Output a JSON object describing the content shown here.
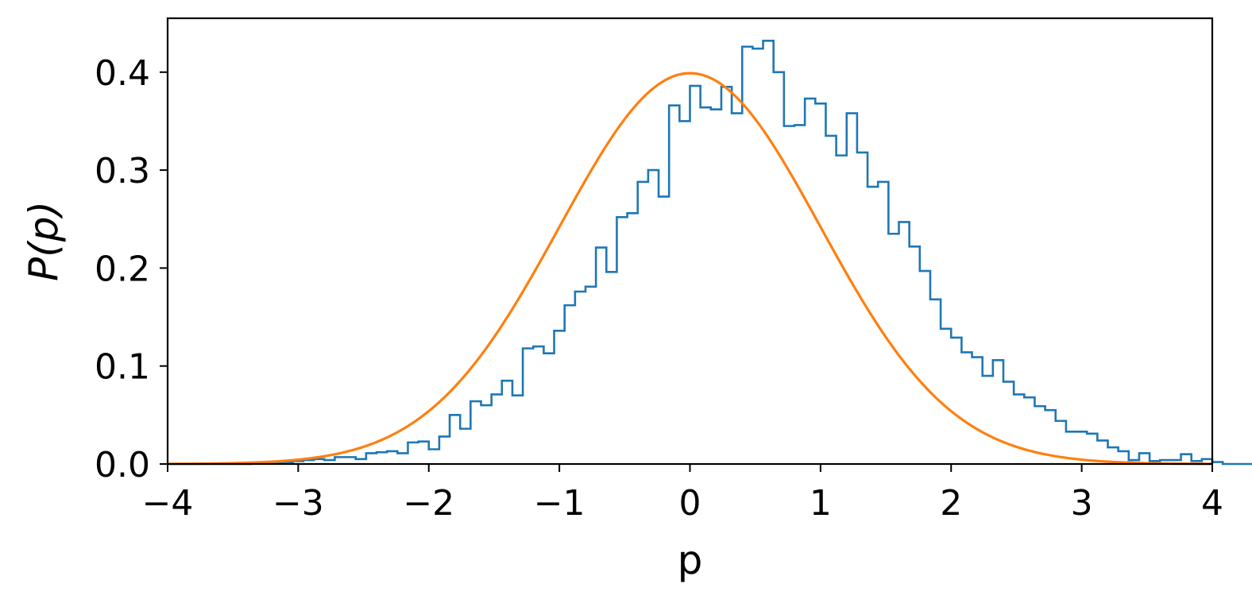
{
  "chart_data": {
    "type": "histogram",
    "xlabel": "p",
    "ylabel_text": "P(p)",
    "xlim": [
      -4,
      4
    ],
    "ylim": [
      0,
      0.455
    ],
    "xticks": [
      -4,
      -3,
      -2,
      -1,
      0,
      1,
      2,
      3,
      4
    ],
    "xtick_labels": [
      "−4",
      "−3",
      "−2",
      "−1",
      "0",
      "1",
      "2",
      "3",
      "4"
    ],
    "yticks": [
      0.0,
      0.1,
      0.2,
      0.3,
      0.4
    ],
    "ytick_labels": [
      "0.0",
      "0.1",
      "0.2",
      "0.3",
      "0.4"
    ],
    "grid": false,
    "series": [
      {
        "kind": "step-histogram",
        "color": "#1f77b4",
        "bin_width": 0.08,
        "bin_edges_start": -4.0,
        "values": [
          0.0,
          0.0,
          0.0,
          0.0,
          0.0,
          0.0,
          0.0,
          0.0,
          0.001,
          0.001,
          0.002,
          0.002,
          0.003,
          0.004,
          0.005,
          0.004,
          0.007,
          0.007,
          0.005,
          0.011,
          0.012,
          0.013,
          0.011,
          0.022,
          0.023,
          0.015,
          0.028,
          0.05,
          0.036,
          0.064,
          0.06,
          0.071,
          0.085,
          0.07,
          0.118,
          0.12,
          0.113,
          0.136,
          0.162,
          0.176,
          0.181,
          0.221,
          0.196,
          0.252,
          0.256,
          0.288,
          0.3,
          0.273,
          0.366,
          0.35,
          0.386,
          0.364,
          0.362,
          0.385,
          0.358,
          0.426,
          0.424,
          0.432,
          0.4,
          0.345,
          0.346,
          0.373,
          0.368,
          0.335,
          0.315,
          0.358,
          0.318,
          0.283,
          0.288,
          0.235,
          0.247,
          0.222,
          0.197,
          0.168,
          0.138,
          0.129,
          0.114,
          0.109,
          0.09,
          0.106,
          0.084,
          0.071,
          0.068,
          0.059,
          0.055,
          0.044,
          0.033,
          0.033,
          0.031,
          0.024,
          0.017,
          0.013,
          0.004,
          0.011,
          0.003,
          0.004,
          0.004,
          0.01,
          0.003,
          0.005,
          0.002,
          0.0,
          0.0,
          0.0,
          0.001,
          0.001,
          0.0,
          0.0,
          0.0,
          0.0
        ]
      },
      {
        "kind": "line",
        "color": "#ff7f0e",
        "function": "standard-normal-pdf",
        "mean": 0,
        "std": 1
      }
    ]
  }
}
